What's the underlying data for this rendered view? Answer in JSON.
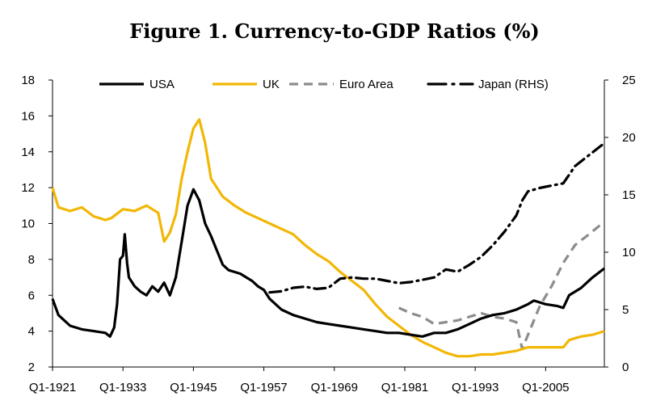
{
  "chart_data": {
    "type": "line",
    "title": "Figure 1.  Currency-to-GDP Ratios (%)",
    "x_ticks": [
      "Q1-1921",
      "Q1-1933",
      "Q1-1945",
      "Q1-1957",
      "Q1-1969",
      "Q1-1981",
      "Q1-1993",
      "Q1-2005"
    ],
    "x_tick_years": [
      1921,
      1933,
      1945,
      1957,
      1969,
      1981,
      1993,
      2005
    ],
    "xlim": [
      1921,
      2015
    ],
    "ylim_left": [
      2,
      18
    ],
    "yticks_left": [
      "2",
      "4",
      "6",
      "8",
      "10",
      "12",
      "14",
      "16",
      "18"
    ],
    "ylim_right": [
      0,
      25
    ],
    "yticks_right": [
      "0",
      "5",
      "10",
      "15",
      "20",
      "25"
    ],
    "legend_position": "top",
    "series": [
      {
        "name": "USA",
        "axis": "left",
        "color": "#000000",
        "style": "solid",
        "points": [
          [
            1921,
            5.8
          ],
          [
            1922,
            4.9
          ],
          [
            1923,
            4.6
          ],
          [
            1924,
            4.3
          ],
          [
            1926,
            4.1
          ],
          [
            1928,
            4.0
          ],
          [
            1930,
            3.9
          ],
          [
            1930.8,
            3.7
          ],
          [
            1931.5,
            4.2
          ],
          [
            1932,
            5.5
          ],
          [
            1932.5,
            8.0
          ],
          [
            1933,
            8.2
          ],
          [
            1933.3,
            9.4
          ],
          [
            1933.7,
            7.8
          ],
          [
            1934,
            7.0
          ],
          [
            1935,
            6.5
          ],
          [
            1936,
            6.2
          ],
          [
            1937,
            6.0
          ],
          [
            1938,
            6.5
          ],
          [
            1939,
            6.2
          ],
          [
            1940,
            6.7
          ],
          [
            1941,
            6.0
          ],
          [
            1942,
            7.0
          ],
          [
            1943,
            9.0
          ],
          [
            1944,
            11.0
          ],
          [
            1945,
            11.9
          ],
          [
            1946,
            11.3
          ],
          [
            1947,
            10.0
          ],
          [
            1948,
            9.3
          ],
          [
            1949,
            8.5
          ],
          [
            1950,
            7.7
          ],
          [
            1951,
            7.4
          ],
          [
            1952,
            7.3
          ],
          [
            1953,
            7.2
          ],
          [
            1954,
            7.0
          ],
          [
            1955,
            6.8
          ],
          [
            1956,
            6.5
          ],
          [
            1957,
            6.3
          ],
          [
            1958,
            5.8
          ],
          [
            1960,
            5.2
          ],
          [
            1962,
            4.9
          ],
          [
            1964,
            4.7
          ],
          [
            1966,
            4.5
          ],
          [
            1968,
            4.4
          ],
          [
            1970,
            4.3
          ],
          [
            1972,
            4.2
          ],
          [
            1974,
            4.1
          ],
          [
            1976,
            4.0
          ],
          [
            1978,
            3.9
          ],
          [
            1980,
            3.9
          ],
          [
            1982,
            3.8
          ],
          [
            1984,
            3.7
          ],
          [
            1986,
            3.9
          ],
          [
            1988,
            3.9
          ],
          [
            1990,
            4.1
          ],
          [
            1992,
            4.4
          ],
          [
            1994,
            4.7
          ],
          [
            1996,
            4.9
          ],
          [
            1998,
            5.0
          ],
          [
            2000,
            5.2
          ],
          [
            2002,
            5.5
          ],
          [
            2003,
            5.7
          ],
          [
            2005,
            5.5
          ],
          [
            2007,
            5.4
          ],
          [
            2008,
            5.3
          ],
          [
            2009,
            6.0
          ],
          [
            2011,
            6.4
          ],
          [
            2013,
            7.0
          ],
          [
            2015,
            7.5
          ]
        ]
      },
      {
        "name": "UK",
        "axis": "left",
        "color": "#f2b705",
        "style": "solid",
        "points": [
          [
            1921,
            12.0
          ],
          [
            1922,
            10.9
          ],
          [
            1924,
            10.7
          ],
          [
            1926,
            10.9
          ],
          [
            1928,
            10.4
          ],
          [
            1930,
            10.2
          ],
          [
            1931,
            10.3
          ],
          [
            1933,
            10.8
          ],
          [
            1935,
            10.7
          ],
          [
            1937,
            11.0
          ],
          [
            1938,
            10.8
          ],
          [
            1939,
            10.6
          ],
          [
            1940,
            9.0
          ],
          [
            1941,
            9.5
          ],
          [
            1942,
            10.5
          ],
          [
            1943,
            12.5
          ],
          [
            1944,
            14.0
          ],
          [
            1945,
            15.3
          ],
          [
            1946,
            15.8
          ],
          [
            1947,
            14.5
          ],
          [
            1948,
            12.5
          ],
          [
            1949,
            12.0
          ],
          [
            1950,
            11.5
          ],
          [
            1952,
            11.0
          ],
          [
            1954,
            10.6
          ],
          [
            1956,
            10.3
          ],
          [
            1958,
            10.0
          ],
          [
            1960,
            9.7
          ],
          [
            1962,
            9.4
          ],
          [
            1964,
            8.8
          ],
          [
            1966,
            8.3
          ],
          [
            1968,
            7.9
          ],
          [
            1970,
            7.3
          ],
          [
            1972,
            6.8
          ],
          [
            1974,
            6.3
          ],
          [
            1976,
            5.5
          ],
          [
            1978,
            4.8
          ],
          [
            1980,
            4.3
          ],
          [
            1982,
            3.8
          ],
          [
            1984,
            3.4
          ],
          [
            1986,
            3.1
          ],
          [
            1988,
            2.8
          ],
          [
            1990,
            2.6
          ],
          [
            1992,
            2.6
          ],
          [
            1994,
            2.7
          ],
          [
            1996,
            2.7
          ],
          [
            1998,
            2.8
          ],
          [
            2000,
            2.9
          ],
          [
            2002,
            3.1
          ],
          [
            2004,
            3.1
          ],
          [
            2006,
            3.1
          ],
          [
            2008,
            3.1
          ],
          [
            2009,
            3.5
          ],
          [
            2011,
            3.7
          ],
          [
            2013,
            3.8
          ],
          [
            2015,
            4.0
          ]
        ]
      },
      {
        "name": "Euro Area",
        "axis": "left",
        "color": "#8c8c8c",
        "style": "dashed",
        "points": [
          [
            1980,
            5.3
          ],
          [
            1982,
            5.0
          ],
          [
            1984,
            4.8
          ],
          [
            1986,
            4.4
          ],
          [
            1988,
            4.5
          ],
          [
            1990,
            4.6
          ],
          [
            1992,
            4.8
          ],
          [
            1994,
            5.0
          ],
          [
            1996,
            4.8
          ],
          [
            1998,
            4.7
          ],
          [
            2000,
            4.5
          ],
          [
            2001,
            3.0
          ],
          [
            2002,
            3.8
          ],
          [
            2004,
            5.4
          ],
          [
            2006,
            6.5
          ],
          [
            2008,
            7.8
          ],
          [
            2010,
            8.8
          ],
          [
            2012,
            9.3
          ],
          [
            2015,
            10.1
          ]
        ]
      },
      {
        "name": "Japan (RHS)",
        "axis": "right",
        "color": "#000000",
        "style": "dashdot",
        "points": [
          [
            1958,
            6.5
          ],
          [
            1960,
            6.6
          ],
          [
            1962,
            6.9
          ],
          [
            1964,
            7.0
          ],
          [
            1966,
            6.8
          ],
          [
            1968,
            6.9
          ],
          [
            1970,
            7.7
          ],
          [
            1972,
            7.8
          ],
          [
            1974,
            7.7
          ],
          [
            1976,
            7.7
          ],
          [
            1978,
            7.5
          ],
          [
            1980,
            7.3
          ],
          [
            1982,
            7.4
          ],
          [
            1984,
            7.6
          ],
          [
            1986,
            7.8
          ],
          [
            1988,
            8.5
          ],
          [
            1990,
            8.3
          ],
          [
            1992,
            8.9
          ],
          [
            1994,
            9.6
          ],
          [
            1996,
            10.6
          ],
          [
            1998,
            11.8
          ],
          [
            2000,
            13.2
          ],
          [
            2001,
            14.5
          ],
          [
            2002,
            15.3
          ],
          [
            2004,
            15.6
          ],
          [
            2006,
            15.8
          ],
          [
            2008,
            16.0
          ],
          [
            2010,
            17.5
          ],
          [
            2012,
            18.3
          ],
          [
            2014,
            19.1
          ],
          [
            2015,
            19.5
          ]
        ]
      }
    ]
  }
}
